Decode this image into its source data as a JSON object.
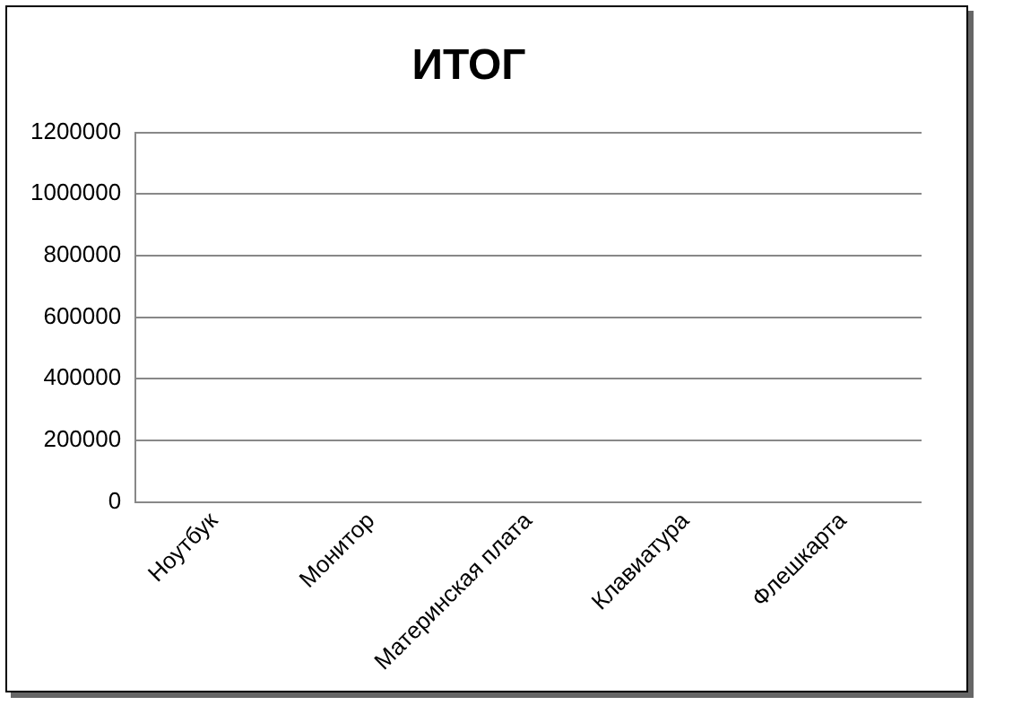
{
  "chart_data": {
    "type": "bar",
    "title": "ИТОГ",
    "categories": [
      "Ноутбук",
      "Монитор",
      "Материнская плата",
      "Клавиатура",
      "Флешкарта"
    ],
    "values": [
      0,
      0,
      0,
      0,
      0
    ],
    "ylim": [
      0,
      1200000
    ],
    "yticks": [
      0,
      200000,
      400000,
      600000,
      800000,
      1000000,
      1200000
    ],
    "grid": "y"
  }
}
